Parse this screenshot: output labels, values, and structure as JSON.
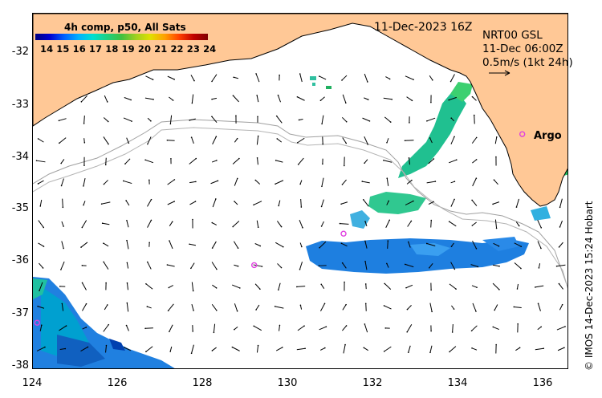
{
  "title": {
    "date": "11-Dec-2023 16Z"
  },
  "colorbar": {
    "title": "4h comp, p50, All Sats",
    "labels": "14 15 16 17 18 19 20 21 22 23 24",
    "colors": [
      "#000080",
      "#0000d0",
      "#0060ff",
      "#00b0ff",
      "#00e0d0",
      "#20d080",
      "#40c040",
      "#a0d020",
      "#e0e000",
      "#ffa000",
      "#ff4000",
      "#c00000",
      "#800000"
    ]
  },
  "info": {
    "line1": "NRT00 GSL",
    "line2": "11-Dec 06:00Z",
    "line3": "0.5m/s (1kt 24h)"
  },
  "argo_label": "Argo",
  "credit": "© IMOS 14-Dec-2023 15:24 Hobart",
  "y_ticks": [
    "-32",
    "-33",
    "-34",
    "-35",
    "-36",
    "-37",
    "-38"
  ],
  "x_ticks": [
    "124",
    "126",
    "128",
    "130",
    "132",
    "134",
    "136"
  ],
  "map": {
    "land_color": "#ffc896",
    "coast_color": "#000000",
    "shelf_color": "#a0a0a0",
    "argo_color": "#e040e0",
    "lon_range": [
      124,
      136.6
    ],
    "lat_range": [
      -31.3,
      -38.1
    ],
    "argo_floats": [
      {
        "lon": 135.5,
        "lat": -33.6
      },
      {
        "lon": 131.3,
        "lat": -35.5
      },
      {
        "lon": 129.2,
        "lat": -36.1
      },
      {
        "lon": 124.1,
        "lat": -37.2
      }
    ]
  }
}
